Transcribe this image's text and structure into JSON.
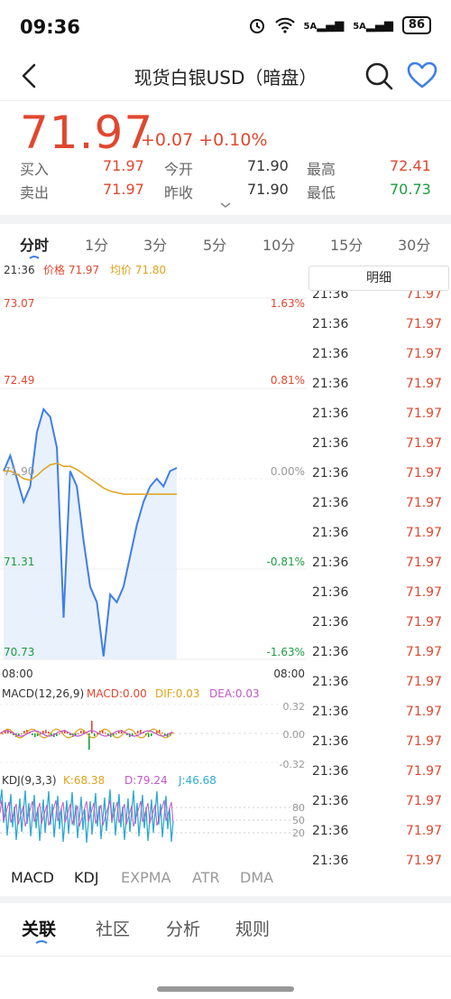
{
  "status_bar": {
    "time": "09:36",
    "signal1": "5A",
    "signal2": "5A",
    "battery": "86"
  },
  "header": {
    "title": "现货白银USD（暗盘）"
  },
  "quote": {
    "price": "71.97",
    "change": "+0.07 +0.10%",
    "stats": [
      {
        "label": "买入",
        "value": "71.97",
        "tone": "red"
      },
      {
        "label": "今开",
        "value": "71.90",
        "tone": "dark"
      },
      {
        "label": "最高",
        "value": "72.41",
        "tone": "red"
      },
      {
        "label": "卖出",
        "value": "71.97",
        "tone": "red"
      },
      {
        "label": "昨收",
        "value": "71.90",
        "tone": "dark"
      },
      {
        "label": "最低",
        "value": "70.73",
        "tone": "green"
      }
    ]
  },
  "period_tabs": [
    "分时",
    "1分",
    "3分",
    "5分",
    "10分",
    "15分",
    "30分"
  ],
  "chart": {
    "info_time": "21:36",
    "info_price": "价格 71.97",
    "info_avg": "均价 71.80",
    "y_labels": [
      "73.07",
      "72.49",
      "71.90",
      "71.31",
      "70.73"
    ],
    "pct_labels": [
      "1.63%",
      "0.81%",
      "0.00%",
      "-0.81%",
      "-1.63%"
    ],
    "time_start": "08:00",
    "time_end": "08:00",
    "macd_label": "MACD(12,26,9)",
    "macd_value": "MACD:0.00",
    "dif_value": "DIF:0.03",
    "dea_value": "DEA:0.03",
    "macd_ticks": [
      "0.32",
      "0.00",
      "-0.32"
    ],
    "kdj_label": "KDJ(9,3,3)",
    "k_value": "K:68.38",
    "d_value": "D:79.24",
    "j_value": "J:46.68",
    "kdj_ticks": [
      "80",
      "50",
      "20"
    ]
  },
  "chart_data": {
    "type": "line",
    "x": [
      0,
      2,
      4,
      6,
      8,
      10,
      12,
      14,
      16,
      18,
      20,
      22,
      24,
      26,
      28,
      30,
      32,
      34,
      36,
      38,
      40,
      42,
      44,
      46,
      48,
      50,
      52
    ],
    "series": [
      {
        "name": "价格",
        "values": [
          71.95,
          72.05,
          71.9,
          71.75,
          71.85,
          72.2,
          72.35,
          72.3,
          72.1,
          71.0,
          71.95,
          71.85,
          71.5,
          71.2,
          71.1,
          70.75,
          71.15,
          71.1,
          71.2,
          71.4,
          71.6,
          71.75,
          71.85,
          71.9,
          71.85,
          71.95,
          71.97
        ]
      },
      {
        "name": "均价",
        "values": [
          71.95,
          71.95,
          71.93,
          71.9,
          71.89,
          71.92,
          71.96,
          71.99,
          72.0,
          71.98,
          71.98,
          71.96,
          71.93,
          71.9,
          71.87,
          71.84,
          71.82,
          71.81,
          71.8,
          71.8,
          71.8,
          71.8,
          71.8,
          71.8,
          71.8,
          71.8,
          71.8
        ]
      }
    ],
    "ylim": [
      70.73,
      73.07
    ],
    "xlabel": "",
    "ylabel": ""
  },
  "ticks": {
    "header": "明细",
    "rows": [
      {
        "time": "21:36",
        "price": "71.97"
      },
      {
        "time": "21:36",
        "price": "71.97"
      },
      {
        "time": "21:36",
        "price": "71.97"
      },
      {
        "time": "21:36",
        "price": "71.97"
      },
      {
        "time": "21:36",
        "price": "71.97"
      },
      {
        "time": "21:36",
        "price": "71.97"
      },
      {
        "time": "21:36",
        "price": "71.97"
      },
      {
        "time": "21:36",
        "price": "71.97"
      },
      {
        "time": "21:36",
        "price": "71.97"
      },
      {
        "time": "21:36",
        "price": "71.97"
      },
      {
        "time": "21:36",
        "price": "71.97"
      },
      {
        "time": "21:36",
        "price": "71.97"
      },
      {
        "time": "21:36",
        "price": "71.97"
      },
      {
        "time": "21:36",
        "price": "71.97"
      },
      {
        "time": "21:36",
        "price": "71.97"
      },
      {
        "time": "21:36",
        "price": "71.97"
      },
      {
        "time": "21:36",
        "price": "71.97"
      },
      {
        "time": "21:36",
        "price": "71.97"
      },
      {
        "time": "21:36",
        "price": "71.97"
      },
      {
        "time": "21:36",
        "price": "71.97"
      }
    ]
  },
  "indicator_tabs": [
    "MACD",
    "KDJ",
    "EXPMA",
    "ATR",
    "DMA"
  ],
  "bottom_tabs": [
    "关联",
    "社区",
    "分析",
    "规则"
  ],
  "colors": {
    "up": "#e0472f",
    "down": "#1a9e3f",
    "price_line": "#3f7ee8",
    "avg_line": "#e0a21a"
  }
}
